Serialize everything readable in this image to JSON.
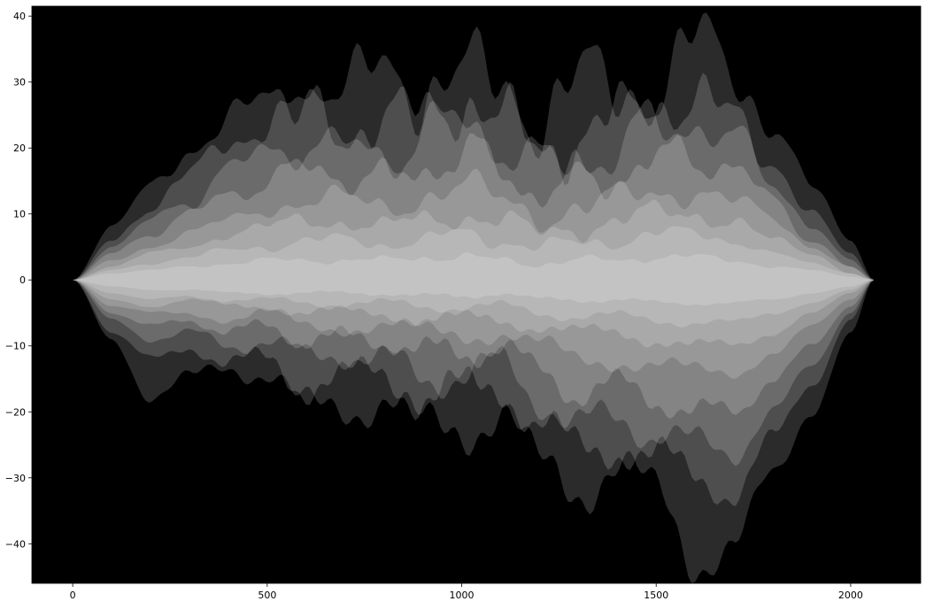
{
  "chart_data": {
    "type": "area",
    "title": "",
    "xlabel": "",
    "ylabel": "",
    "xlim": [
      -105,
      2180
    ],
    "ylim": [
      -46,
      41.5
    ],
    "x_ticks": [
      0,
      500,
      1000,
      1500,
      2000
    ],
    "y_ticks": [
      -40,
      -30,
      -20,
      -10,
      0,
      10,
      20,
      30,
      40
    ],
    "x_tick_labels": [
      "0",
      "500",
      "1000",
      "1500",
      "2000"
    ],
    "y_tick_labels": [
      "−40",
      "−30",
      "−20",
      "−10",
      "0",
      "10",
      "20",
      "30",
      "40"
    ],
    "grid": false,
    "legend": "none",
    "background_color": "#000000",
    "fill_color": "#ffffff",
    "series": [
      {
        "color": "#ffffff",
        "opacity": 0.17,
        "x": [
          0,
          100,
          200,
          300,
          400,
          500,
          600,
          700,
          800,
          900,
          1000,
          1100,
          1200,
          1300,
          1400,
          1500,
          1600,
          1700,
          1800,
          1900,
          2000,
          2060
        ],
        "upper": [
          0,
          8,
          14,
          20,
          24,
          27,
          30,
          28,
          32,
          30,
          31,
          29,
          26,
          30,
          28,
          30,
          36,
          31,
          24,
          14,
          6,
          0
        ],
        "lower": [
          0,
          -9,
          -18,
          -15,
          -13,
          -14,
          -20,
          -19,
          -18,
          -23,
          -22,
          -20,
          -29,
          -31,
          -28,
          -33,
          -42,
          -40,
          -30,
          -20,
          -8,
          0
        ]
      },
      {
        "color": "#ffffff",
        "opacity": 0.17,
        "x": [
          0,
          100,
          200,
          300,
          400,
          500,
          600,
          700,
          800,
          900,
          1000,
          1100,
          1200,
          1300,
          1400,
          1500,
          1600,
          1700,
          1800,
          1900,
          2000,
          2060
        ],
        "upper": [
          0,
          6,
          11,
          16,
          21,
          24,
          26,
          23,
          24,
          25,
          28,
          24,
          20,
          22,
          24,
          27,
          28,
          24,
          18,
          10,
          4,
          0
        ],
        "lower": [
          0,
          -8,
          -12,
          -10,
          -13,
          -12,
          -16,
          -15,
          -14,
          -18,
          -17,
          -16,
          -22,
          -26,
          -25,
          -27,
          -30,
          -32,
          -24,
          -16,
          -6,
          0
        ]
      },
      {
        "color": "#ffffff",
        "opacity": 0.17,
        "x": [
          0,
          100,
          200,
          300,
          400,
          500,
          600,
          700,
          800,
          900,
          1000,
          1100,
          1200,
          1300,
          1400,
          1500,
          1600,
          1700,
          1800,
          1900,
          2000,
          2060
        ],
        "upper": [
          0,
          5,
          9,
          12,
          17,
          19,
          21,
          20,
          19,
          22,
          24,
          21,
          17,
          18,
          20,
          23,
          24,
          21,
          15,
          8,
          3,
          0
        ],
        "lower": [
          0,
          -6,
          -9,
          -8,
          -10,
          -9,
          -12,
          -11,
          -12,
          -15,
          -14,
          -13,
          -18,
          -22,
          -21,
          -23,
          -25,
          -26,
          -20,
          -13,
          -5,
          0
        ]
      },
      {
        "color": "#ffffff",
        "opacity": 0.17,
        "x": [
          0,
          100,
          200,
          300,
          400,
          500,
          600,
          700,
          800,
          900,
          1000,
          1100,
          1200,
          1300,
          1400,
          1500,
          1600,
          1700,
          1800,
          1900,
          2000,
          2060
        ],
        "upper": [
          0,
          4,
          7,
          10,
          13,
          15,
          17,
          16,
          15,
          17,
          19,
          17,
          13,
          15,
          16,
          18,
          19,
          17,
          12,
          6,
          2,
          0
        ],
        "lower": [
          0,
          -5,
          -7,
          -6,
          -8,
          -7,
          -9,
          -9,
          -9,
          -11,
          -11,
          -10,
          -14,
          -17,
          -16,
          -18,
          -20,
          -20,
          -15,
          -10,
          -4,
          0
        ]
      },
      {
        "color": "#ffffff",
        "opacity": 0.17,
        "x": [
          0,
          100,
          200,
          300,
          400,
          500,
          600,
          700,
          800,
          900,
          1000,
          1100,
          1200,
          1300,
          1400,
          1500,
          1600,
          1700,
          1800,
          1900,
          2000,
          2060
        ],
        "upper": [
          0,
          3,
          5,
          7,
          9,
          11,
          12,
          12,
          11,
          13,
          14,
          12,
          10,
          11,
          12,
          13,
          14,
          12,
          9,
          5,
          2,
          0
        ],
        "lower": [
          0,
          -4,
          -5,
          -5,
          -6,
          -5,
          -7,
          -7,
          -7,
          -8,
          -8,
          -8,
          -10,
          -12,
          -12,
          -13,
          -14,
          -14,
          -11,
          -7,
          -3,
          0
        ]
      },
      {
        "color": "#ffffff",
        "opacity": 0.17,
        "x": [
          0,
          100,
          200,
          300,
          400,
          500,
          600,
          700,
          800,
          900,
          1000,
          1100,
          1200,
          1300,
          1400,
          1500,
          1600,
          1700,
          1800,
          1900,
          2000,
          2060
        ],
        "upper": [
          0,
          2,
          4,
          5,
          7,
          8,
          9,
          9,
          8,
          9,
          10,
          9,
          7,
          8,
          9,
          10,
          10,
          9,
          6,
          4,
          1,
          0
        ],
        "lower": [
          0,
          -3,
          -4,
          -3,
          -4,
          -4,
          -5,
          -5,
          -5,
          -6,
          -6,
          -6,
          -7,
          -8,
          -8,
          -9,
          -10,
          -10,
          -8,
          -5,
          -2,
          0
        ]
      },
      {
        "color": "#ffffff",
        "opacity": 0.17,
        "x": [
          0,
          100,
          200,
          300,
          400,
          500,
          600,
          700,
          800,
          900,
          1000,
          1100,
          1200,
          1300,
          1400,
          1500,
          1600,
          1700,
          1800,
          1900,
          2000,
          2060
        ],
        "upper": [
          0,
          1.5,
          2.5,
          3.5,
          4.5,
          5,
          6,
          6,
          5.5,
          6,
          7,
          6,
          5,
          5.5,
          6,
          7,
          7,
          6,
          4,
          2.5,
          1,
          0
        ],
        "lower": [
          0,
          -2,
          -3,
          -2.5,
          -3,
          -3,
          -3.5,
          -3.5,
          -3.5,
          -4,
          -4,
          -4,
          -5,
          -5.5,
          -5.5,
          -6,
          -6.5,
          -6.5,
          -5,
          -3.5,
          -1.5,
          0
        ]
      },
      {
        "color": "#ffffff",
        "opacity": 0.17,
        "x": [
          0,
          100,
          200,
          300,
          400,
          500,
          600,
          700,
          800,
          900,
          1000,
          1100,
          1200,
          1300,
          1400,
          1500,
          1600,
          1700,
          1800,
          1900,
          2000,
          2060
        ],
        "upper": [
          0,
          1,
          1.5,
          2,
          2.5,
          3,
          3,
          3,
          3,
          3.5,
          3.5,
          3,
          2.5,
          3,
          3,
          3.5,
          3.5,
          3,
          2,
          1.5,
          0.5,
          0
        ],
        "lower": [
          0,
          -1,
          -1.5,
          -1.5,
          -2,
          -2,
          -2,
          -2,
          -2,
          -2.5,
          -2.5,
          -2,
          -3,
          -3,
          -3,
          -3.5,
          -3.5,
          -3.5,
          -3,
          -2,
          -1,
          0
        ]
      }
    ]
  }
}
